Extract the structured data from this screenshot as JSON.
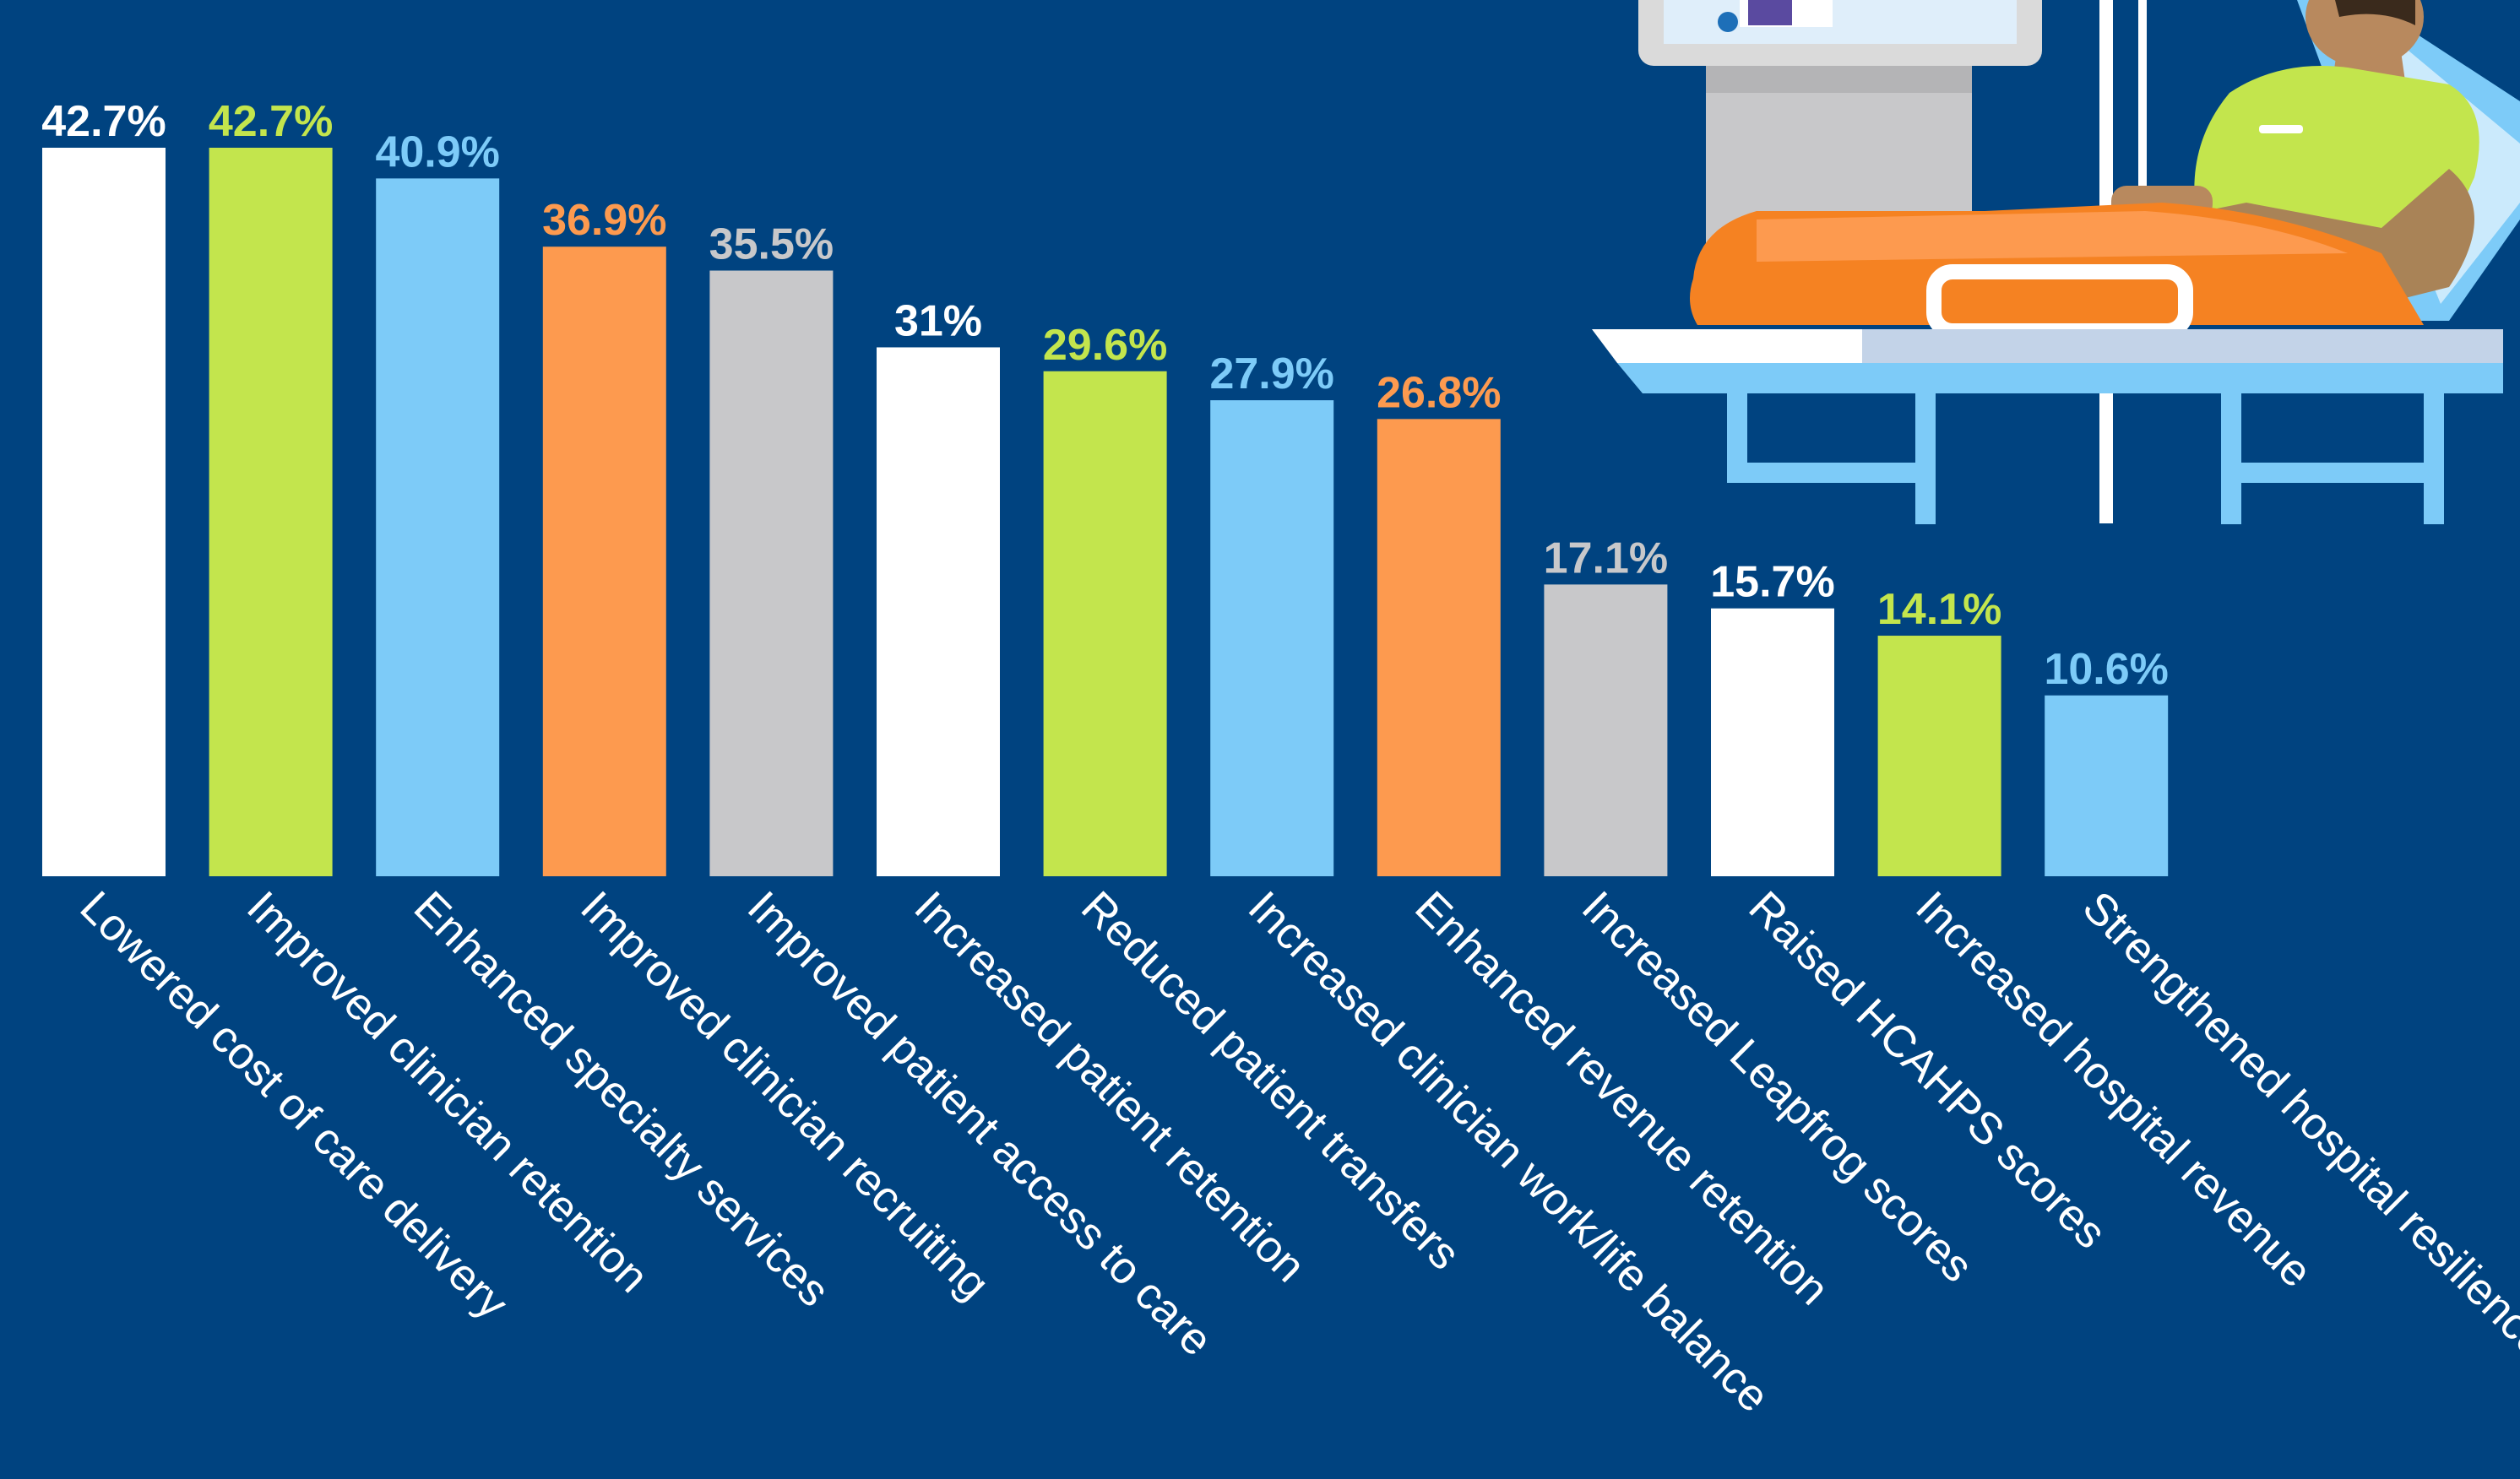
{
  "chart_data": {
    "type": "bar",
    "categories": [
      "Lowered cost of care delivery",
      "Improved clinician retention",
      "Enhanced specialty services",
      "Improved clinician recruiting",
      "Improved patient access to care",
      "Increased patient retention",
      "Reduced patient transfers",
      "Increased clinician work/life balance",
      "Enhanced revenue retention",
      "Increased Leapfrog scores",
      "Raised HCAHPS scores",
      "Increased hospital revenue",
      "Strengthened hospital resilience"
    ],
    "values": [
      42.7,
      42.7,
      40.9,
      36.9,
      35.5,
      31,
      29.6,
      27.9,
      26.8,
      17.1,
      15.7,
      14.1,
      10.6
    ],
    "value_labels": [
      "42.7%",
      "42.7%",
      "40.9%",
      "36.9%",
      "35.5%",
      "31%",
      "29.6%",
      "27.9%",
      "26.8%",
      "17.1%",
      "15.7%",
      "14.1%",
      "10.6%"
    ],
    "bar_colors": [
      "#ffffff",
      "#c3e54d",
      "#7dcbf8",
      "#fd9a4f",
      "#c8c8ca",
      "#ffffff",
      "#c3e54d",
      "#7dcbf8",
      "#fd9a4f",
      "#c8c8ca",
      "#ffffff",
      "#c3e54d",
      "#7dcbf8"
    ],
    "title": "",
    "xlabel": "",
    "ylabel": "",
    "ylim": [
      0,
      42.7
    ],
    "grid": false,
    "legend": "none"
  },
  "colors": {
    "background": "#004380",
    "white": "#ffffff",
    "green": "#c3e54d",
    "blue": "#7dcbf8",
    "orange": "#fd9a4f",
    "gray": "#c8c8ca"
  },
  "illustration": {
    "name": "patient-in-hospital-bed-with-telemedicine-screen"
  }
}
